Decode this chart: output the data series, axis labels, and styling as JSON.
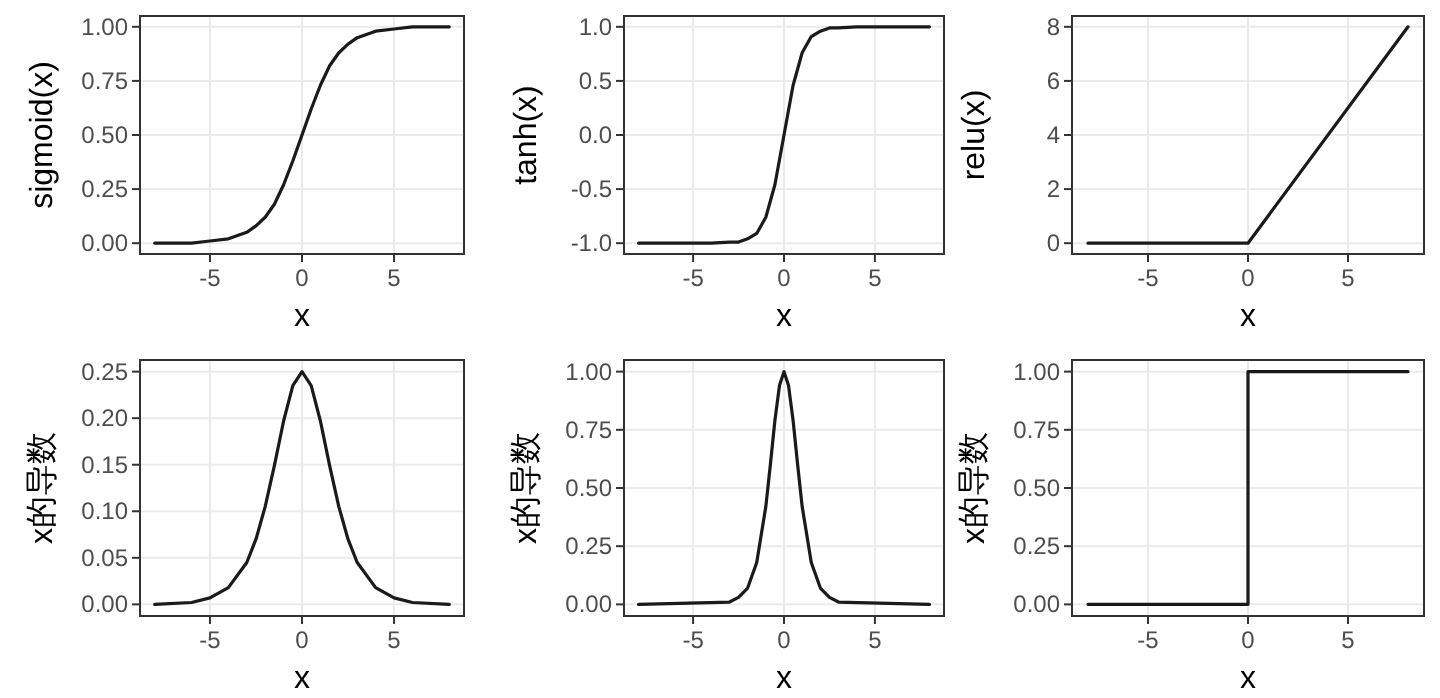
{
  "chart_data": [
    {
      "type": "line",
      "xlabel": "x",
      "ylabel": "sigmoid(x)",
      "color": "#1a1a1a",
      "grid": true,
      "line_style": "solid",
      "x": [
        -8,
        -6,
        -5,
        -4,
        -3,
        -2.5,
        -2,
        -1.5,
        -1,
        -0.5,
        0,
        0.5,
        1,
        1.5,
        2,
        2.5,
        3,
        4,
        5,
        6,
        8
      ],
      "values": [
        0.0,
        0.0,
        0.01,
        0.02,
        0.05,
        0.08,
        0.12,
        0.18,
        0.27,
        0.38,
        0.5,
        0.62,
        0.73,
        0.82,
        0.88,
        0.92,
        0.95,
        0.98,
        0.99,
        1,
        1
      ],
      "xlim": [
        -8.8,
        8.8
      ],
      "xticks": [
        -5,
        0,
        5
      ],
      "ylim": [
        -0.05,
        1.05
      ],
      "yticks": [
        {
          "value": 0,
          "label": "0.00"
        },
        {
          "value": 0.25,
          "label": "0.25"
        },
        {
          "value": 0.5,
          "label": "0.50"
        },
        {
          "value": 0.75,
          "label": "0.75"
        },
        {
          "value": 1,
          "label": "1.00"
        }
      ]
    },
    {
      "type": "line",
      "xlabel": "x",
      "ylabel": "tanh(x)",
      "color": "#1a1a1a",
      "grid": true,
      "line_style": "solid",
      "x": [
        -8,
        -4,
        -3,
        -2.5,
        -2,
        -1.5,
        -1,
        -0.5,
        0,
        0.5,
        1,
        1.5,
        2,
        2.5,
        3,
        4,
        8
      ],
      "values": [
        -1,
        -1,
        -0.99,
        -0.99,
        -0.96,
        -0.91,
        -0.76,
        -0.46,
        0,
        0.46,
        0.76,
        0.91,
        0.96,
        0.99,
        0.99,
        1,
        1
      ],
      "xlim": [
        -8.8,
        8.8
      ],
      "xticks": [
        -5,
        0,
        5
      ],
      "ylim": [
        -1.1,
        1.1
      ],
      "yticks": [
        {
          "value": -1,
          "label": "-1.0"
        },
        {
          "value": -0.5,
          "label": "-0.5"
        },
        {
          "value": 0,
          "label": "0.0"
        },
        {
          "value": 0.5,
          "label": "0.5"
        },
        {
          "value": 1,
          "label": "1.0"
        }
      ]
    },
    {
      "type": "line",
      "xlabel": "x",
      "ylabel": "relu(x)",
      "color": "#1a1a1a",
      "grid": true,
      "line_style": "solid",
      "x": [
        -8,
        0,
        8
      ],
      "values": [
        0,
        0,
        8
      ],
      "xlim": [
        -8.8,
        8.8
      ],
      "xticks": [
        -5,
        0,
        5
      ],
      "ylim": [
        -0.4,
        8.4
      ],
      "yticks": [
        0,
        2,
        4,
        6,
        8
      ]
    },
    {
      "type": "line",
      "xlabel": "x",
      "ylabel": "x的导数",
      "color": "#1a1a1a",
      "grid": true,
      "line_style": "solid",
      "x": [
        -8,
        -6,
        -5,
        -4,
        -3,
        -2.5,
        -2,
        -1.5,
        -1,
        -0.5,
        0,
        0.5,
        1,
        1.5,
        2,
        2.5,
        3,
        4,
        5,
        6,
        8
      ],
      "values": [
        0,
        0.002,
        0.007,
        0.018,
        0.045,
        0.07,
        0.105,
        0.149,
        0.197,
        0.235,
        0.25,
        0.235,
        0.197,
        0.149,
        0.105,
        0.07,
        0.045,
        0.018,
        0.007,
        0.002,
        0
      ],
      "xlim": [
        -8.8,
        8.8
      ],
      "xticks": [
        -5,
        0,
        5
      ],
      "ylim": [
        -0.0125,
        0.2625
      ],
      "yticks": [
        {
          "value": 0,
          "label": "0.00"
        },
        {
          "value": 0.05,
          "label": "0.05"
        },
        {
          "value": 0.1,
          "label": "0.10"
        },
        {
          "value": 0.15,
          "label": "0.15"
        },
        {
          "value": 0.2,
          "label": "0.20"
        },
        {
          "value": 0.25,
          "label": "0.25"
        }
      ]
    },
    {
      "type": "line",
      "xlabel": "x",
      "ylabel": "x的导数",
      "color": "#1a1a1a",
      "grid": true,
      "line_style": "solid",
      "x": [
        -8,
        -3,
        -2.5,
        -2,
        -1.5,
        -1,
        -0.75,
        -0.5,
        -0.25,
        0,
        0.25,
        0.5,
        0.75,
        1,
        1.5,
        2,
        2.5,
        3,
        8
      ],
      "values": [
        0,
        0.01,
        0.03,
        0.07,
        0.18,
        0.42,
        0.6,
        0.79,
        0.94,
        1,
        0.94,
        0.79,
        0.6,
        0.42,
        0.18,
        0.07,
        0.03,
        0.01,
        0
      ],
      "xlim": [
        -8.8,
        8.8
      ],
      "xticks": [
        -5,
        0,
        5
      ],
      "ylim": [
        -0.05,
        1.05
      ],
      "yticks": [
        {
          "value": 0,
          "label": "0.00"
        },
        {
          "value": 0.25,
          "label": "0.25"
        },
        {
          "value": 0.5,
          "label": "0.50"
        },
        {
          "value": 0.75,
          "label": "0.75"
        },
        {
          "value": 1,
          "label": "1.00"
        }
      ]
    },
    {
      "type": "line",
      "xlabel": "x",
      "ylabel": "x的导数",
      "color": "#1a1a1a",
      "grid": true,
      "line_style": "solid",
      "x": [
        -8,
        0,
        0,
        8
      ],
      "values": [
        0,
        0,
        1,
        1
      ],
      "xlim": [
        -8.8,
        8.8
      ],
      "xticks": [
        -5,
        0,
        5
      ],
      "ylim": [
        -0.05,
        1.05
      ],
      "yticks": [
        {
          "value": 0,
          "label": "0.00"
        },
        {
          "value": 0.25,
          "label": "0.25"
        },
        {
          "value": 0.5,
          "label": "0.50"
        },
        {
          "value": 0.75,
          "label": "0.75"
        },
        {
          "value": 1,
          "label": "1.00"
        }
      ]
    }
  ]
}
